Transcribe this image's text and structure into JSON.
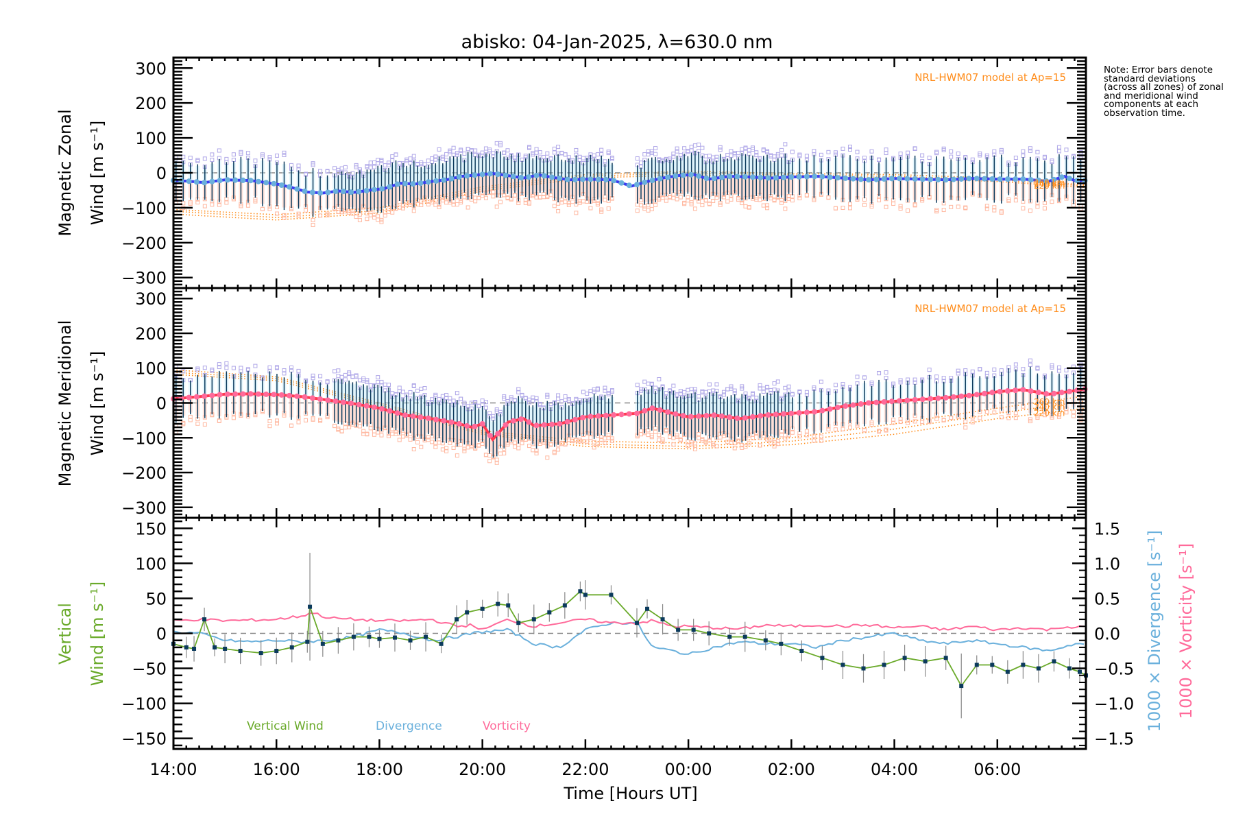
{
  "chart_data": [
    {
      "id": "zonal",
      "type": "line",
      "title": "abisko: 04-Jan-2025, λ=630.0 nm",
      "ylabel": [
        "Magnetic Zonal",
        "Wind [m s⁻¹]"
      ],
      "ylim": [
        -330,
        330
      ],
      "yticks": [
        300,
        200,
        100,
        0,
        -100,
        -200,
        -300
      ],
      "xlim_hours": [
        14.0,
        31.72
      ],
      "model_label": "NRL-HWM07 model at Ap=15",
      "model_altitudes": [
        "260 km",
        "240 km",
        "220 km"
      ],
      "colors": {
        "mean": "#3a3af0",
        "points": "#6ab0dc",
        "model": "#ff8c1a",
        "errbar": "#0b3a5c"
      },
      "mean_series": {
        "name": "Zonal wind",
        "x_hours": [
          14.0,
          14.3,
          14.6,
          15.0,
          15.5,
          16.0,
          16.3,
          16.6,
          16.9,
          17.2,
          17.5,
          17.8,
          18.1,
          18.4,
          18.7,
          19.0,
          19.3,
          19.6,
          19.9,
          20.2,
          20.5,
          20.8,
          21.1,
          21.4,
          21.7,
          22.0,
          22.5,
          22.9,
          23.2,
          23.5,
          23.8,
          24.1,
          24.4,
          24.8,
          25.2,
          25.6,
          26.0,
          26.5,
          27.0,
          27.5,
          28.0,
          28.5,
          29.0,
          29.5,
          30.0,
          30.5,
          31.0,
          31.3,
          31.5,
          31.72
        ],
        "values": [
          -22,
          -24,
          -28,
          -20,
          -22,
          -32,
          -42,
          -55,
          -58,
          -52,
          -56,
          -50,
          -45,
          -30,
          -32,
          -25,
          -20,
          -10,
          -6,
          -2,
          -8,
          -15,
          -6,
          -14,
          -20,
          -18,
          -20,
          -38,
          -25,
          -15,
          -8,
          -5,
          -18,
          -10,
          -12,
          -15,
          -12,
          -10,
          -15,
          -20,
          -16,
          -18,
          -20,
          -16,
          -18,
          -18,
          -24,
          -10,
          -22,
          -22
        ]
      },
      "model_series": [
        {
          "name": "260 km",
          "x_hours": [
            14,
            16,
            18,
            20,
            22,
            24,
            26,
            28,
            30,
            31.72
          ],
          "values": [
            -105,
            -120,
            -100,
            -40,
            -5,
            5,
            -2,
            -5,
            -15,
            -35
          ]
        },
        {
          "name": "240 km",
          "x_hours": [
            14,
            16,
            18,
            20,
            22,
            24,
            26,
            28,
            30,
            31.72
          ],
          "values": [
            -110,
            -128,
            -108,
            -46,
            -10,
            0,
            -6,
            -10,
            -20,
            -38
          ]
        },
        {
          "name": "220 km",
          "x_hours": [
            14,
            16,
            18,
            20,
            22,
            24,
            26,
            28,
            30,
            31.72
          ],
          "values": [
            -118,
            -135,
            -115,
            -52,
            -15,
            -6,
            -10,
            -15,
            -25,
            -42
          ]
        }
      ]
    },
    {
      "id": "meridional",
      "type": "line",
      "ylabel": [
        "Magnetic Meridional",
        "Wind [m s⁻¹]"
      ],
      "ylim": [
        -330,
        330
      ],
      "yticks": [
        300,
        200,
        100,
        0,
        -100,
        -200,
        -300
      ],
      "xlim_hours": [
        14.0,
        31.72
      ],
      "model_label": "NRL-HWM07 model at Ap=15",
      "model_altitudes": [
        "260 km",
        "240 km",
        "220 km"
      ],
      "colors": {
        "mean": "#ff3a50",
        "points": "#ff6a9a",
        "model": "#ff8c1a",
        "errbar": "#0b3a5c"
      },
      "mean_series": {
        "name": "Meridional wind",
        "x_hours": [
          14.0,
          14.5,
          15.0,
          15.5,
          16.0,
          16.5,
          17.0,
          17.5,
          18.0,
          18.5,
          19.0,
          19.5,
          19.8,
          20.0,
          20.2,
          20.5,
          20.8,
          21.0,
          21.5,
          22.0,
          22.5,
          23.0,
          23.3,
          23.7,
          24.0,
          24.5,
          25.0,
          25.5,
          26.0,
          26.5,
          27.0,
          27.5,
          28.0,
          28.5,
          29.0,
          29.5,
          30.0,
          30.5,
          31.0,
          31.5,
          31.72
        ],
        "values": [
          12,
          18,
          25,
          26,
          24,
          18,
          8,
          -2,
          -15,
          -35,
          -45,
          -58,
          -70,
          -60,
          -105,
          -55,
          -45,
          -65,
          -60,
          -40,
          -35,
          -30,
          -15,
          -30,
          -40,
          -35,
          -45,
          -35,
          -30,
          -25,
          -10,
          0,
          5,
          10,
          15,
          22,
          32,
          38,
          25,
          35,
          40
        ]
      },
      "model_series": [
        {
          "name": "260 km",
          "x_hours": [
            14,
            16,
            18,
            20,
            22,
            24,
            26,
            28,
            30,
            31.72
          ],
          "values": [
            95,
            75,
            0,
            -80,
            -110,
            -115,
            -100,
            -60,
            -15,
            20
          ]
        },
        {
          "name": "240 km",
          "x_hours": [
            14,
            16,
            18,
            20,
            22,
            24,
            26,
            28,
            30,
            31.72
          ],
          "values": [
            88,
            70,
            -5,
            -85,
            -118,
            -125,
            -110,
            -75,
            -30,
            5
          ]
        },
        {
          "name": "220 km",
          "x_hours": [
            14,
            16,
            18,
            20,
            22,
            24,
            26,
            28,
            30,
            31.72
          ],
          "values": [
            82,
            64,
            -10,
            -90,
            -125,
            -132,
            -120,
            -90,
            -45,
            -15
          ]
        }
      ]
    },
    {
      "id": "vertical",
      "type": "line",
      "ylabel": [
        "Vertical",
        "Wind [m s⁻¹]"
      ],
      "ylabel_right_1": "1000 × Divergence [s⁻¹]",
      "ylabel_right_2": "1000 × Vorticity [s⁻¹]",
      "ylim": [
        -165,
        165
      ],
      "yticks": [
        150,
        100,
        50,
        0,
        -50,
        -100,
        -150
      ],
      "y2lim": [
        -1.65,
        1.65
      ],
      "y2ticks": [
        "1.5",
        "1.0",
        "0.5",
        "0.0",
        "-0.5",
        "-1.0",
        "-1.5"
      ],
      "xlim_hours": [
        14.0,
        31.72
      ],
      "xlabel": "Time [Hours UT]",
      "xticks": [
        "14:00",
        "16:00",
        "18:00",
        "20:00",
        "22:00",
        "00:00",
        "02:00",
        "04:00",
        "06:00"
      ],
      "xtick_hours": [
        14,
        16,
        18,
        20,
        22,
        24,
        26,
        28,
        30
      ],
      "legend": [
        {
          "label": "Vertical Wind",
          "color": "#6aaa2a"
        },
        {
          "label": "Divergence",
          "color": "#6ab0dc"
        },
        {
          "label": "Vorticity",
          "color": "#ff6a9a"
        }
      ],
      "series": [
        {
          "name": "Vertical Wind",
          "axis": "left",
          "x_hours": [
            14.0,
            14.25,
            14.4,
            14.6,
            14.8,
            15.0,
            15.3,
            15.7,
            16.0,
            16.3,
            16.6,
            16.65,
            16.9,
            17.2,
            17.5,
            17.8,
            18.0,
            18.3,
            18.6,
            18.9,
            19.2,
            19.5,
            19.7,
            20.0,
            20.3,
            20.5,
            20.7,
            21.0,
            21.3,
            21.6,
            21.9,
            22.0,
            22.5,
            23.0,
            23.2,
            23.5,
            23.8,
            24.1,
            24.4,
            24.8,
            25.1,
            25.5,
            25.8,
            26.2,
            26.6,
            27.0,
            27.4,
            27.8,
            28.2,
            28.6,
            29.0,
            29.3,
            29.6,
            29.9,
            30.2,
            30.5,
            30.8,
            31.1,
            31.4,
            31.6,
            31.72
          ],
          "values": [
            -15,
            -20,
            -22,
            20,
            -20,
            -22,
            -25,
            -28,
            -25,
            -20,
            -12,
            38,
            -15,
            -10,
            -5,
            -5,
            -8,
            -6,
            -10,
            -5,
            -15,
            20,
            30,
            35,
            42,
            40,
            15,
            20,
            30,
            40,
            60,
            55,
            55,
            15,
            35,
            20,
            5,
            5,
            0,
            -5,
            -5,
            -10,
            -15,
            -25,
            -35,
            -45,
            -50,
            -45,
            -35,
            -40,
            -35,
            -75,
            -45,
            -45,
            -55,
            -45,
            -50,
            -40,
            -50,
            -55,
            -60
          ]
        },
        {
          "name": "Divergence",
          "axis": "right",
          "scale": 0.01,
          "x_hours": [
            14.0,
            14.5,
            15.0,
            15.5,
            16.0,
            16.5,
            17.0,
            17.5,
            18.0,
            18.5,
            19.0,
            19.5,
            19.8,
            20.0,
            20.5,
            21.0,
            21.5,
            22.0,
            22.5,
            23.0,
            23.3,
            23.7,
            24.0,
            24.5,
            25.0,
            25.5,
            26.0,
            26.5,
            27.0,
            27.5,
            28.0,
            28.5,
            29.0,
            29.5,
            30.0,
            30.5,
            31.0,
            31.5,
            31.72
          ],
          "values": [
            0.02,
            0.0,
            -0.1,
            -0.12,
            -0.1,
            -0.12,
            -0.1,
            -0.05,
            0.05,
            0.0,
            -0.1,
            -0.05,
            0.0,
            0.02,
            0.05,
            -0.15,
            -0.2,
            0.05,
            0.15,
            0.15,
            -0.2,
            -0.25,
            -0.3,
            -0.2,
            -0.12,
            -0.15,
            -0.15,
            -0.2,
            -0.1,
            -0.05,
            0.0,
            -0.1,
            -0.15,
            -0.1,
            -0.15,
            -0.2,
            -0.25,
            -0.15,
            -0.15
          ]
        },
        {
          "name": "Vorticity",
          "axis": "right",
          "scale": 0.01,
          "x_hours": [
            14.0,
            14.5,
            15.0,
            15.5,
            16.0,
            16.5,
            16.7,
            17.0,
            17.5,
            18.0,
            18.5,
            19.0,
            19.5,
            19.8,
            20.0,
            20.5,
            21.0,
            21.5,
            22.0,
            22.5,
            23.0,
            23.3,
            23.7,
            24.0,
            24.5,
            25.0,
            25.5,
            26.0,
            26.5,
            27.0,
            27.5,
            28.0,
            28.5,
            29.0,
            29.5,
            30.0,
            30.5,
            31.0,
            31.3,
            31.5,
            31.72
          ],
          "values": [
            0.18,
            0.2,
            0.18,
            0.19,
            0.2,
            0.25,
            0.3,
            0.22,
            0.2,
            0.18,
            0.18,
            0.2,
            0.1,
            0.12,
            0.05,
            0.2,
            0.1,
            0.15,
            0.2,
            0.15,
            0.15,
            0.18,
            0.1,
            0.1,
            0.08,
            0.06,
            0.12,
            0.1,
            0.12,
            0.1,
            0.12,
            0.08,
            0.1,
            0.05,
            0.1,
            0.05,
            0.08,
            0.05,
            0.1,
            0.08,
            0.1
          ]
        }
      ]
    }
  ],
  "note": "Note: Error bars denote standard deviations (across all zones) of zonal and meridional wind components at each observation time."
}
